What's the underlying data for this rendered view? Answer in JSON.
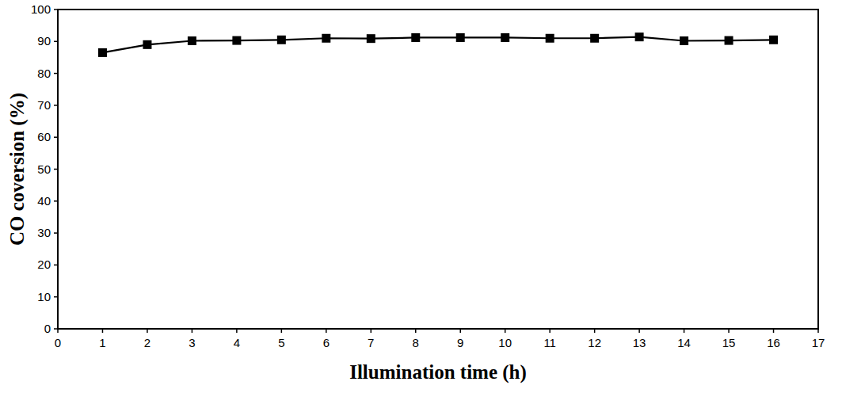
{
  "chart_data": {
    "type": "line",
    "x_label": "Illumination time (h)",
    "y_label": "CO coversion (%)",
    "x": [
      1,
      2,
      3,
      4,
      5,
      6,
      7,
      8,
      9,
      10,
      11,
      12,
      13,
      14,
      15,
      16
    ],
    "values": [
      86.5,
      89.0,
      90.2,
      90.3,
      90.5,
      91.0,
      90.9,
      91.2,
      91.2,
      91.2,
      91.0,
      91.0,
      91.4,
      90.2,
      90.3,
      90.5
    ],
    "color": "#000000",
    "marker": "square",
    "line_style": "solid",
    "xlim": [
      0,
      17
    ],
    "xticks": [
      0,
      1,
      2,
      3,
      4,
      5,
      6,
      7,
      8,
      9,
      10,
      11,
      12,
      13,
      14,
      15,
      16,
      17
    ],
    "ylim": [
      0,
      100
    ],
    "yticks": [
      0,
      10,
      20,
      30,
      40,
      50,
      60,
      70,
      80,
      90,
      100
    ],
    "grid": false
  }
}
